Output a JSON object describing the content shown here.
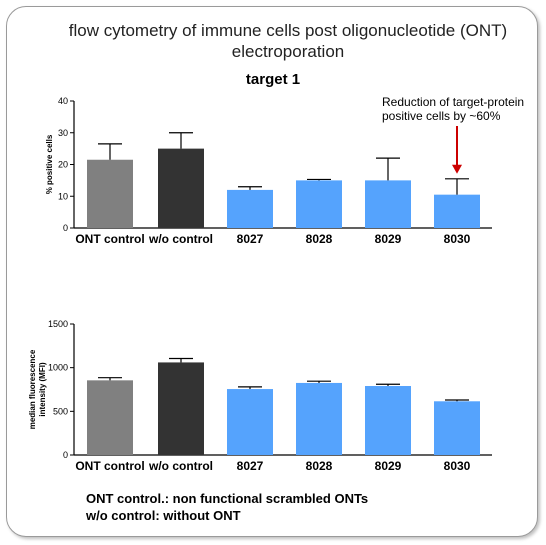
{
  "page": {
    "title_lines": [
      "flow cytometry of immune cells post oligonucleotide (ONT)",
      "electroporation"
    ],
    "subtitle": "target 1",
    "footnote_lines": [
      "ONT control.: non functional scrambled ONTs",
      "w/o control: without ONT"
    ]
  },
  "chart_data": [
    {
      "type": "bar",
      "categories": [
        "ONT control",
        "w/o control",
        "8027",
        "8028",
        "8029",
        "8030"
      ],
      "values": [
        21.5,
        25,
        12,
        15,
        15,
        10.5
      ],
      "errors": [
        5,
        5,
        1,
        0.3,
        7,
        5
      ],
      "bar_colors": [
        "#808080",
        "#333333",
        "#55a3fd",
        "#55a3fd",
        "#55a3fd",
        "#55a3fd"
      ],
      "ylabel": "% positive cells",
      "ylim": [
        0,
        40
      ],
      "yticks": [
        0,
        10,
        20,
        30,
        40
      ],
      "annotation": {
        "lines": [
          "Reduction of target-protein",
          "positive cells by ~60%"
        ],
        "target_category": "8030",
        "arrow_color": "#cc0000"
      },
      "grid": false
    },
    {
      "type": "bar",
      "categories": [
        "ONT control",
        "w/o control",
        "8027",
        "8028",
        "8029",
        "8030"
      ],
      "values": [
        855,
        1060,
        755,
        825,
        790,
        615
      ],
      "errors": [
        30,
        45,
        25,
        20,
        20,
        15
      ],
      "bar_colors": [
        "#808080",
        "#333333",
        "#55a3fd",
        "#55a3fd",
        "#55a3fd",
        "#55a3fd"
      ],
      "ylabel_lines": [
        "median fluorescence",
        "intensity (MFI)"
      ],
      "ylim": [
        0,
        1500
      ],
      "yticks": [
        0,
        500,
        1000,
        1500
      ],
      "grid": false
    }
  ]
}
